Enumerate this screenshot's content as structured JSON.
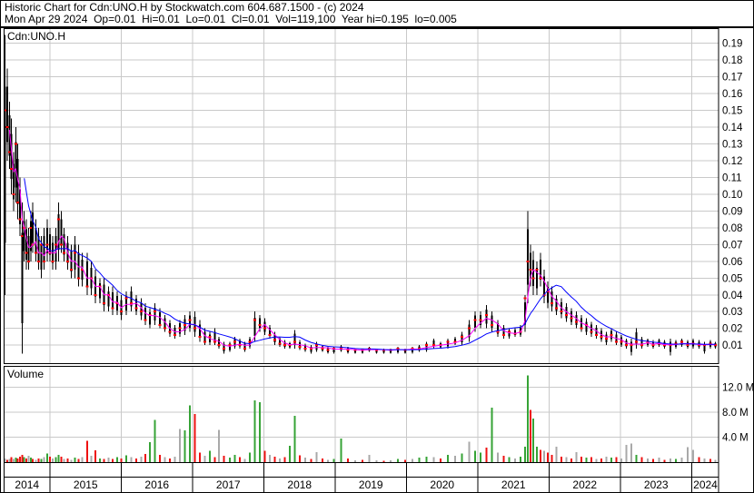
{
  "header": {
    "title_line": "Historic Chart for Cdn:UNO.H by Stockwatch.com 604.687.1500 - (c) 2024",
    "quote_line": "Mon Apr 29 2024  Op=0.01  Hi=0.01  Lo=0.01  Cl=0.01  Vol=119,100  Year hi=0.195  lo=0.005"
  },
  "price_panel": {
    "symbol_label": "Cdn:UNO.H"
  },
  "volume_panel": {
    "label": "Volume"
  },
  "palette": {
    "grid": "#c9c9c9",
    "bar": "#000000",
    "close_tick": "#ff0000",
    "ma_short": "#ff00ff",
    "ma_long": "#0000ff",
    "vol_up": "#36a336",
    "vol_down": "#ee1111",
    "vol_flat": "#a9a9a9",
    "border": "#000000",
    "text": "#000000"
  },
  "chart_data": {
    "type": "candlestick+volume",
    "title": "Historic Chart for Cdn:UNO.H",
    "x_axis": {
      "t_min": 2014.36,
      "t_max": 2024.38,
      "years": [
        "2014",
        "2015",
        "2016",
        "2017",
        "2018",
        "2019",
        "2020",
        "2021",
        "2022",
        "2023",
        "2024"
      ]
    },
    "y_axis_price": {
      "range": [
        0.0,
        0.195
      ],
      "ticks": [
        {
          "label": "0.19",
          "value": 0.19
        },
        {
          "label": "0.18",
          "value": 0.18
        },
        {
          "label": "0.17",
          "value": 0.17
        },
        {
          "label": "0.16",
          "value": 0.16
        },
        {
          "label": "0.15",
          "value": 0.15
        },
        {
          "label": "0.14",
          "value": 0.14
        },
        {
          "label": "0.13",
          "value": 0.13
        },
        {
          "label": "0.12",
          "value": 0.12
        },
        {
          "label": "0.11",
          "value": 0.11
        },
        {
          "label": "0.10",
          "value": 0.1
        },
        {
          "label": "0.09",
          "value": 0.09
        },
        {
          "label": "0.08",
          "value": 0.08
        },
        {
          "label": "0.07",
          "value": 0.07
        },
        {
          "label": "0.06",
          "value": 0.06
        },
        {
          "label": "0.05",
          "value": 0.05
        },
        {
          "label": "0.04",
          "value": 0.04
        },
        {
          "label": "0.03",
          "value": 0.03
        },
        {
          "label": "0.02",
          "value": 0.02
        },
        {
          "label": "0.01",
          "value": 0.01
        }
      ]
    },
    "y_axis_volume": {
      "range_millions": [
        0,
        15
      ],
      "ticks": [
        {
          "label": "12.0 M",
          "value": 12
        },
        {
          "label": "8.0 M",
          "value": 8
        },
        {
          "label": "4.0 M",
          "value": 4
        }
      ]
    },
    "moving_averages": [
      {
        "name": "short-ma",
        "window": 3,
        "color_key": "ma_short"
      },
      {
        "name": "long-ma",
        "window": 10,
        "color_key": "ma_long"
      }
    ],
    "bars_format": [
      "t_year",
      "high",
      "low",
      "close",
      "volume_millions",
      "vol_color g|r|n"
    ],
    "bars": [
      [
        2014.37,
        0.195,
        0.04,
        0.15,
        0.6,
        "n"
      ],
      [
        2014.4,
        0.175,
        0.12,
        0.14,
        0.4,
        "r"
      ],
      [
        2014.43,
        0.155,
        0.115,
        0.125,
        0.5,
        "n"
      ],
      [
        2014.46,
        0.145,
        0.1,
        0.115,
        0.8,
        "r"
      ],
      [
        2014.49,
        0.125,
        0.09,
        0.1,
        0.5,
        "n"
      ],
      [
        2014.52,
        0.14,
        0.095,
        0.13,
        0.7,
        "g"
      ],
      [
        2014.55,
        0.13,
        0.085,
        0.095,
        0.6,
        "r"
      ],
      [
        2014.58,
        0.11,
        0.075,
        0.085,
        0.9,
        "r"
      ],
      [
        2014.61,
        0.095,
        0.005,
        0.075,
        1.2,
        "r"
      ],
      [
        2014.64,
        0.09,
        0.06,
        0.08,
        0.8,
        "g"
      ],
      [
        2014.67,
        0.085,
        0.055,
        0.065,
        0.6,
        "r"
      ],
      [
        2014.7,
        0.08,
        0.055,
        0.06,
        1.0,
        "n"
      ],
      [
        2014.73,
        0.09,
        0.06,
        0.08,
        0.7,
        "g"
      ],
      [
        2014.76,
        0.095,
        0.065,
        0.07,
        0.5,
        "r"
      ],
      [
        2014.8,
        0.085,
        0.06,
        0.065,
        0.4,
        "n"
      ],
      [
        2014.84,
        0.08,
        0.055,
        0.06,
        0.6,
        "r"
      ],
      [
        2014.88,
        0.075,
        0.05,
        0.07,
        0.5,
        "g"
      ],
      [
        2014.92,
        0.08,
        0.055,
        0.06,
        0.8,
        "n"
      ],
      [
        2014.96,
        0.085,
        0.06,
        0.07,
        1.4,
        "g"
      ],
      [
        2015.0,
        0.08,
        0.06,
        0.065,
        0.9,
        "r"
      ],
      [
        2015.04,
        0.075,
        0.055,
        0.06,
        0.6,
        "n"
      ],
      [
        2015.08,
        0.08,
        0.055,
        0.07,
        0.8,
        "g"
      ],
      [
        2015.12,
        0.095,
        0.06,
        0.085,
        1.2,
        "g"
      ],
      [
        2015.16,
        0.09,
        0.065,
        0.07,
        0.9,
        "r"
      ],
      [
        2015.2,
        0.08,
        0.06,
        0.065,
        0.5,
        "n"
      ],
      [
        2015.25,
        0.075,
        0.055,
        0.06,
        0.6,
        "r"
      ],
      [
        2015.3,
        0.07,
        0.05,
        0.055,
        0.4,
        "n"
      ],
      [
        2015.35,
        0.075,
        0.05,
        0.065,
        0.7,
        "g"
      ],
      [
        2015.4,
        0.07,
        0.045,
        0.05,
        0.5,
        "r"
      ],
      [
        2015.45,
        0.065,
        0.045,
        0.055,
        0.8,
        "n"
      ],
      [
        2015.52,
        0.065,
        0.04,
        0.045,
        3.4,
        "r"
      ],
      [
        2015.58,
        0.06,
        0.04,
        0.05,
        1.0,
        "n"
      ],
      [
        2015.64,
        0.055,
        0.035,
        0.04,
        1.9,
        "r"
      ],
      [
        2015.7,
        0.05,
        0.035,
        0.045,
        0.6,
        "g"
      ],
      [
        2015.76,
        0.05,
        0.03,
        0.035,
        0.5,
        "r"
      ],
      [
        2015.82,
        0.045,
        0.03,
        0.04,
        0.7,
        "n"
      ],
      [
        2015.88,
        0.045,
        0.028,
        0.032,
        0.5,
        "r"
      ],
      [
        2015.94,
        0.042,
        0.028,
        0.035,
        0.8,
        "g"
      ],
      [
        2016.0,
        0.04,
        0.025,
        0.03,
        0.6,
        "r"
      ],
      [
        2016.07,
        0.042,
        0.028,
        0.038,
        1.1,
        "g"
      ],
      [
        2016.14,
        0.045,
        0.03,
        0.035,
        0.8,
        "n"
      ],
      [
        2016.21,
        0.04,
        0.028,
        0.032,
        0.6,
        "r"
      ],
      [
        2016.28,
        0.038,
        0.025,
        0.03,
        0.9,
        "n"
      ],
      [
        2016.34,
        0.035,
        0.022,
        0.025,
        1.3,
        "r"
      ],
      [
        2016.4,
        0.032,
        0.02,
        0.028,
        3.2,
        "g"
      ],
      [
        2016.47,
        0.035,
        0.022,
        0.03,
        6.8,
        "g"
      ],
      [
        2016.54,
        0.032,
        0.02,
        0.022,
        1.2,
        "r"
      ],
      [
        2016.61,
        0.028,
        0.018,
        0.02,
        0.8,
        "n"
      ],
      [
        2016.68,
        0.025,
        0.015,
        0.018,
        0.6,
        "r"
      ],
      [
        2016.75,
        0.022,
        0.014,
        0.016,
        0.9,
        "n"
      ],
      [
        2016.82,
        0.025,
        0.015,
        0.02,
        5.3,
        "n"
      ],
      [
        2016.89,
        0.028,
        0.016,
        0.022,
        5.1,
        "g"
      ],
      [
        2016.96,
        0.03,
        0.018,
        0.025,
        9.1,
        "g"
      ],
      [
        2017.03,
        0.03,
        0.015,
        0.02,
        7.7,
        "r"
      ],
      [
        2017.1,
        0.025,
        0.012,
        0.015,
        1.5,
        "r"
      ],
      [
        2017.17,
        0.02,
        0.01,
        0.012,
        1.0,
        "n"
      ],
      [
        2017.24,
        0.018,
        0.01,
        0.015,
        1.8,
        "g"
      ],
      [
        2017.31,
        0.02,
        0.01,
        0.012,
        0.8,
        "r"
      ],
      [
        2017.37,
        0.015,
        0.008,
        0.01,
        5.2,
        "n"
      ],
      [
        2017.44,
        0.012,
        0.005,
        0.008,
        1.0,
        "r"
      ],
      [
        2017.52,
        0.012,
        0.006,
        0.01,
        0.7,
        "g"
      ],
      [
        2017.59,
        0.015,
        0.008,
        0.012,
        1.2,
        "g"
      ],
      [
        2017.66,
        0.014,
        0.008,
        0.01,
        0.8,
        "r"
      ],
      [
        2017.73,
        0.012,
        0.006,
        0.008,
        0.5,
        "n"
      ],
      [
        2017.8,
        0.015,
        0.008,
        0.012,
        1.5,
        "g"
      ],
      [
        2017.87,
        0.03,
        0.012,
        0.025,
        9.9,
        "g"
      ],
      [
        2017.94,
        0.028,
        0.018,
        0.022,
        9.6,
        "g"
      ],
      [
        2018.01,
        0.026,
        0.016,
        0.02,
        1.8,
        "r"
      ],
      [
        2018.08,
        0.022,
        0.014,
        0.016,
        1.2,
        "n"
      ],
      [
        2018.15,
        0.018,
        0.01,
        0.013,
        0.9,
        "r"
      ],
      [
        2018.22,
        0.015,
        0.009,
        0.011,
        0.6,
        "n"
      ],
      [
        2018.29,
        0.013,
        0.008,
        0.01,
        0.8,
        "r"
      ],
      [
        2018.36,
        0.012,
        0.008,
        0.01,
        2.6,
        "g"
      ],
      [
        2018.43,
        0.019,
        0.008,
        0.012,
        7.4,
        "g"
      ],
      [
        2018.5,
        0.013,
        0.007,
        0.009,
        1.1,
        "r"
      ],
      [
        2018.58,
        0.011,
        0.006,
        0.008,
        0.7,
        "n"
      ],
      [
        2018.66,
        0.01,
        0.005,
        0.008,
        0.5,
        "r"
      ],
      [
        2018.74,
        0.012,
        0.006,
        0.01,
        1.6,
        "n"
      ],
      [
        2018.82,
        0.01,
        0.006,
        0.008,
        0.6,
        "r"
      ],
      [
        2018.9,
        0.009,
        0.005,
        0.007,
        0.4,
        "n"
      ],
      [
        2018.98,
        0.009,
        0.005,
        0.008,
        0.5,
        "g"
      ],
      [
        2019.08,
        0.01,
        0.006,
        0.008,
        3.8,
        "g"
      ],
      [
        2019.18,
        0.009,
        0.005,
        0.007,
        0.6,
        "r"
      ],
      [
        2019.28,
        0.008,
        0.005,
        0.007,
        0.3,
        "n"
      ],
      [
        2019.38,
        0.008,
        0.005,
        0.007,
        0.4,
        "r"
      ],
      [
        2019.48,
        0.009,
        0.006,
        0.008,
        1.2,
        "n"
      ],
      [
        2019.58,
        0.008,
        0.005,
        0.007,
        0.3,
        "n"
      ],
      [
        2019.68,
        0.008,
        0.005,
        0.007,
        0.2,
        "r"
      ],
      [
        2019.78,
        0.008,
        0.005,
        0.007,
        0.3,
        "n"
      ],
      [
        2019.88,
        0.009,
        0.005,
        0.008,
        0.5,
        "g"
      ],
      [
        2019.98,
        0.008,
        0.005,
        0.007,
        0.4,
        "r"
      ],
      [
        2020.08,
        0.009,
        0.005,
        0.008,
        0.5,
        "n"
      ],
      [
        2020.18,
        0.01,
        0.006,
        0.008,
        0.7,
        "g"
      ],
      [
        2020.28,
        0.012,
        0.006,
        0.01,
        0.9,
        "g"
      ],
      [
        2020.38,
        0.014,
        0.008,
        0.01,
        0.8,
        "n"
      ],
      [
        2020.48,
        0.012,
        0.008,
        0.01,
        0.6,
        "r"
      ],
      [
        2020.58,
        0.014,
        0.008,
        0.012,
        1.2,
        "g"
      ],
      [
        2020.68,
        0.015,
        0.01,
        0.012,
        1.0,
        "n"
      ],
      [
        2020.78,
        0.018,
        0.01,
        0.015,
        1.4,
        "g"
      ],
      [
        2020.88,
        0.025,
        0.012,
        0.02,
        3.3,
        "n"
      ],
      [
        2020.96,
        0.03,
        0.018,
        0.025,
        1.8,
        "g"
      ],
      [
        2021.04,
        0.03,
        0.02,
        0.025,
        1.5,
        "g"
      ],
      [
        2021.12,
        0.034,
        0.02,
        0.028,
        2.3,
        "r"
      ],
      [
        2021.2,
        0.03,
        0.018,
        0.022,
        8.7,
        "g"
      ],
      [
        2021.28,
        0.025,
        0.015,
        0.018,
        1.5,
        "n"
      ],
      [
        2021.36,
        0.022,
        0.014,
        0.016,
        1.0,
        "r"
      ],
      [
        2021.44,
        0.02,
        0.014,
        0.018,
        0.8,
        "g"
      ],
      [
        2021.52,
        0.02,
        0.015,
        0.017,
        0.6,
        "n"
      ],
      [
        2021.6,
        0.022,
        0.015,
        0.018,
        0.9,
        "g"
      ],
      [
        2021.66,
        0.04,
        0.018,
        0.038,
        2.5,
        "g"
      ],
      [
        2021.7,
        0.09,
        0.035,
        0.06,
        13.9,
        "g"
      ],
      [
        2021.74,
        0.07,
        0.045,
        0.055,
        8.4,
        "r"
      ],
      [
        2021.78,
        0.066,
        0.04,
        0.05,
        7.0,
        "g"
      ],
      [
        2021.83,
        0.06,
        0.04,
        0.055,
        2.5,
        "g"
      ],
      [
        2021.88,
        0.065,
        0.045,
        0.05,
        2.0,
        "r"
      ],
      [
        2021.93,
        0.055,
        0.035,
        0.04,
        1.8,
        "n"
      ],
      [
        2021.98,
        0.048,
        0.032,
        0.042,
        1.5,
        "r"
      ],
      [
        2022.04,
        0.045,
        0.03,
        0.035,
        1.2,
        "r"
      ],
      [
        2022.1,
        0.04,
        0.028,
        0.032,
        2.5,
        "n"
      ],
      [
        2022.17,
        0.038,
        0.026,
        0.03,
        0.9,
        "r"
      ],
      [
        2022.24,
        0.035,
        0.024,
        0.028,
        0.8,
        "n"
      ],
      [
        2022.31,
        0.032,
        0.022,
        0.026,
        0.6,
        "r"
      ],
      [
        2022.38,
        0.03,
        0.02,
        0.024,
        1.6,
        "n"
      ],
      [
        2022.45,
        0.028,
        0.018,
        0.02,
        0.9,
        "r"
      ],
      [
        2022.52,
        0.026,
        0.016,
        0.022,
        0.7,
        "g"
      ],
      [
        2022.59,
        0.024,
        0.015,
        0.018,
        0.8,
        "r"
      ],
      [
        2022.66,
        0.022,
        0.014,
        0.016,
        0.5,
        "n"
      ],
      [
        2022.73,
        0.02,
        0.012,
        0.015,
        0.6,
        "r"
      ],
      [
        2022.8,
        0.018,
        0.01,
        0.014,
        0.9,
        "n"
      ],
      [
        2022.87,
        0.02,
        0.012,
        0.016,
        0.7,
        "g"
      ],
      [
        2022.94,
        0.018,
        0.01,
        0.012,
        0.8,
        "r"
      ],
      [
        2023.01,
        0.016,
        0.009,
        0.012,
        0.6,
        "n"
      ],
      [
        2023.08,
        0.014,
        0.008,
        0.01,
        2.8,
        "n"
      ],
      [
        2023.15,
        0.014,
        0.004,
        0.01,
        3.0,
        "n"
      ],
      [
        2023.22,
        0.02,
        0.008,
        0.012,
        1.2,
        "g"
      ],
      [
        2023.3,
        0.015,
        0.008,
        0.01,
        0.8,
        "r"
      ],
      [
        2023.38,
        0.014,
        0.009,
        0.012,
        0.6,
        "n"
      ],
      [
        2023.46,
        0.013,
        0.008,
        0.01,
        0.5,
        "r"
      ],
      [
        2023.54,
        0.014,
        0.009,
        0.011,
        0.7,
        "n"
      ],
      [
        2023.62,
        0.013,
        0.008,
        0.01,
        0.4,
        "r"
      ],
      [
        2023.7,
        0.014,
        0.004,
        0.01,
        0.6,
        "n"
      ],
      [
        2023.78,
        0.013,
        0.008,
        0.011,
        0.5,
        "g"
      ],
      [
        2023.86,
        0.014,
        0.009,
        0.012,
        0.7,
        "n"
      ],
      [
        2023.94,
        0.013,
        0.008,
        0.01,
        2.4,
        "n"
      ],
      [
        2024.02,
        0.014,
        0.008,
        0.011,
        2.0,
        "n"
      ],
      [
        2024.1,
        0.013,
        0.008,
        0.01,
        0.8,
        "r"
      ],
      [
        2024.18,
        0.012,
        0.005,
        0.01,
        0.6,
        "n"
      ],
      [
        2024.26,
        0.013,
        0.008,
        0.011,
        0.5,
        "r"
      ],
      [
        2024.33,
        0.012,
        0.008,
        0.01,
        0.4,
        "n"
      ]
    ]
  }
}
